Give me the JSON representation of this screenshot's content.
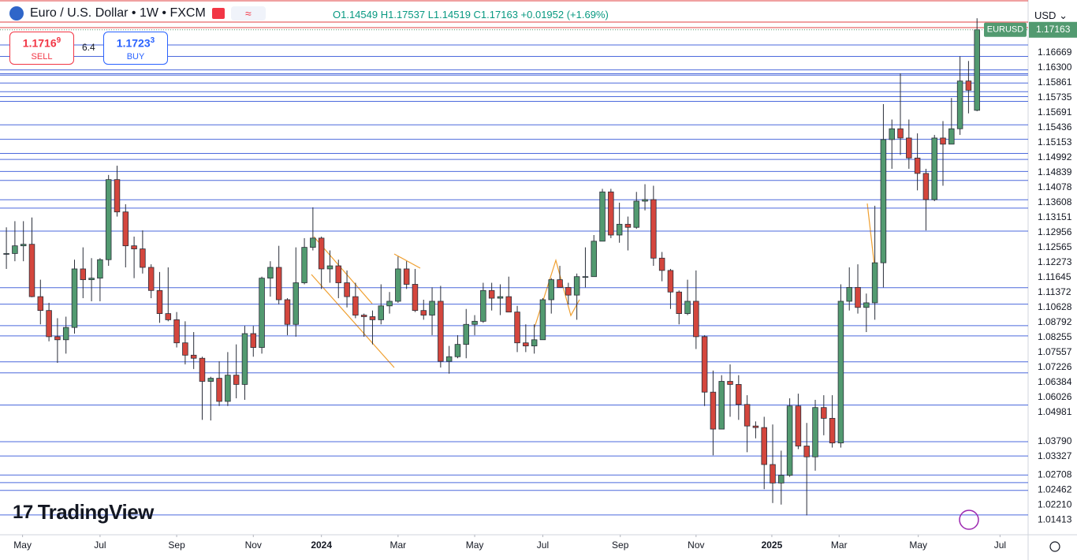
{
  "header": {
    "symbol": "Euro / U.S. Dollar • 1W • FXCM",
    "ohlc": "O1.14549 H1.17537 L1.14519 C1.17163 +0.01952 (+1.69%)"
  },
  "trade": {
    "sell_price": "1.1716",
    "sell_pip": "9",
    "sell_label": "SELL",
    "spread": "6.4",
    "buy_price": "1.1723",
    "buy_pip": "3",
    "buy_label": "BUY"
  },
  "currency": "USD",
  "logo": "TradingView",
  "chart_data": {
    "type": "candlestick",
    "symbol_tag": "EURUSD",
    "up_color": "#529a70",
    "down_color": "#d4463d",
    "level_color": "#2c4fd6",
    "ylim": [
      1.0077,
      1.1813
    ],
    "xlim": [
      -0.75,
      120.0
    ],
    "xticks": [
      {
        "value": 1.9,
        "label": "May"
      },
      {
        "value": 11.0,
        "label": "Jul"
      },
      {
        "value": 20.0,
        "label": "Sep"
      },
      {
        "value": 29.0,
        "label": "Nov"
      },
      {
        "value": 37.0,
        "label": "2024"
      },
      {
        "value": 46.0,
        "label": "Mar"
      },
      {
        "value": 55.0,
        "label": "May"
      },
      {
        "value": 63.0,
        "label": "Jul"
      },
      {
        "value": 72.1,
        "label": "Sep"
      },
      {
        "value": 81.0,
        "label": "Nov"
      },
      {
        "value": 89.9,
        "label": "2025"
      },
      {
        "value": 97.8,
        "label": "Mar"
      },
      {
        "value": 107.1,
        "label": "May"
      },
      {
        "value": 116.7,
        "label": "Jul"
      }
    ],
    "levels": [
      1.16669,
      {
        "value": 1.163,
        "label": "1.16300"
      },
      1.15861,
      1.15735,
      1.15691,
      1.15436,
      1.15153,
      1.14992,
      1.14839,
      1.14078,
      1.13608,
      1.13151,
      1.12956,
      1.12565,
      1.12273,
      1.11645,
      1.11372,
      1.10628,
      1.08792,
      1.08255,
      1.07557,
      1.07226,
      1.06384,
      1.06026,
      1.04981,
      {
        "value": 1.0379,
        "label": "1.03790"
      },
      1.03327,
      1.02708,
      1.02462,
      {
        "value": 1.0221,
        "label": "1.02210"
      },
      1.01413
    ],
    "open": [
      1.099,
      1.099,
      1.1015,
      1.102,
      1.085,
      1.0805,
      1.072,
      1.071,
      1.075,
      1.094,
      1.0905,
      1.091,
      1.097,
      1.123,
      1.1125,
      1.1015,
      1.1005,
      1.0945,
      1.087,
      1.0795,
      1.0775,
      1.07,
      1.066,
      1.065,
      1.0575,
      1.0585,
      1.051,
      1.0595,
      1.0565,
      1.073,
      1.0685,
      1.091,
      1.0945,
      1.084,
      1.076,
      1.0895,
      1.101,
      1.104,
      1.094,
      1.095,
      1.0895,
      1.085,
      1.079,
      1.0785,
      1.0775,
      1.082,
      1.0835,
      1.094,
      1.089,
      1.0805,
      1.079,
      1.0835,
      1.064,
      1.0655,
      1.0695,
      1.076,
      1.077,
      1.087,
      1.0845,
      1.085,
      1.08,
      1.07,
      1.069,
      1.071,
      1.084,
      1.0905,
      1.088,
      1.0855,
      1.0915,
      1.0915,
      1.103,
      1.119,
      1.105,
      1.1085,
      1.1075,
      1.116,
      1.1165,
      1.0975,
      1.0935,
      1.0865,
      1.0795,
      1.0835,
      1.072,
      1.054,
      1.042,
      1.0575,
      1.0565,
      1.05,
      1.043,
      1.0425,
      1.0305,
      1.0245,
      1.027,
      1.0495,
      1.0365,
      1.033,
      1.049,
      1.0455,
      1.0375,
      1.0835,
      1.088,
      1.0815,
      1.083,
      1.096,
      1.136,
      1.1395,
      1.1365,
      1.13,
      1.125,
      1.1165,
      1.1365,
      1.1345,
      1.1395,
      1.155,
      1.14549
    ],
    "high": [
      1.1075,
      1.1095,
      1.1095,
      1.1107,
      1.0905,
      1.083,
      1.078,
      1.0785,
      1.097,
      1.101,
      1.0975,
      1.0975,
      1.1245,
      1.1275,
      1.115,
      1.1045,
      1.1065,
      1.0955,
      1.093,
      1.0945,
      1.08,
      1.077,
      1.0735,
      1.0655,
      1.059,
      1.064,
      1.067,
      1.0695,
      1.0755,
      1.0755,
      1.0915,
      1.0965,
      1.1015,
      1.0845,
      1.101,
      1.104,
      1.114,
      1.1045,
      1.1,
      1.097,
      1.0935,
      1.0895,
      1.0795,
      1.0805,
      1.089,
      1.0865,
      1.098,
      1.0965,
      1.094,
      1.084,
      1.088,
      1.0885,
      1.069,
      1.0725,
      1.081,
      1.079,
      1.0895,
      1.0895,
      1.089,
      1.0915,
      1.082,
      1.076,
      1.076,
      1.0845,
      1.091,
      1.095,
      1.0895,
      1.0925,
      1.101,
      1.105,
      1.12,
      1.12,
      1.1155,
      1.111,
      1.119,
      1.1215,
      1.121,
      1.0995,
      1.094,
      1.087,
      1.0905,
      1.0935,
      1.0725,
      1.061,
      1.0595,
      1.063,
      1.0595,
      1.053,
      1.0445,
      1.046,
      1.0435,
      1.035,
      1.052,
      1.0535,
      1.044,
      1.0515,
      1.053,
      1.053,
      1.089,
      1.0945,
      1.0955,
      1.086,
      1.1145,
      1.1475,
      1.1425,
      1.1575,
      1.1425,
      1.138,
      1.1265,
      1.1375,
      1.142,
      1.1495,
      1.163,
      1.1615,
      1.17537
    ],
    "low": [
      1.094,
      1.0965,
      1.0965,
      1.0848,
      1.076,
      1.0705,
      1.0635,
      1.0665,
      1.073,
      1.0845,
      1.0835,
      1.0835,
      1.095,
      1.111,
      1.0945,
      1.091,
      1.0925,
      1.0845,
      1.0765,
      1.077,
      1.0685,
      1.063,
      1.0615,
      1.045,
      1.0448,
      1.0495,
      1.0495,
      1.052,
      1.0515,
      1.0655,
      1.0665,
      1.085,
      1.0825,
      1.0725,
      1.072,
      1.089,
      1.1,
      1.0875,
      1.0895,
      1.0845,
      1.0815,
      1.078,
      1.072,
      1.0695,
      1.076,
      1.0795,
      1.083,
      1.0875,
      1.08,
      1.0775,
      1.0725,
      1.062,
      1.06,
      1.065,
      1.065,
      1.0725,
      1.0765,
      1.0805,
      1.079,
      1.08,
      1.067,
      1.067,
      1.0665,
      1.071,
      1.0795,
      1.088,
      1.0825,
      1.0775,
      1.088,
      1.092,
      1.103,
      1.104,
      1.1025,
      1.1,
      1.107,
      1.113,
      1.095,
      1.09,
      1.081,
      1.076,
      1.079,
      1.068,
      1.0495,
      1.0335,
      1.0425,
      1.046,
      1.045,
      1.0345,
      1.039,
      1.0225,
      1.018,
      1.0175,
      1.0265,
      1.0355,
      1.014,
      1.0285,
      1.04,
      1.036,
      1.036,
      1.0805,
      1.0795,
      1.0735,
      1.0775,
      1.088,
      1.1265,
      1.131,
      1.1265,
      1.1195,
      1.1065,
      1.116,
      1.121,
      1.1355,
      1.1375,
      1.1445,
      1.14519
    ],
    "close": [
      1.099,
      1.1015,
      1.102,
      1.085,
      1.0805,
      1.072,
      1.071,
      1.075,
      1.094,
      1.0905,
      1.091,
      1.097,
      1.123,
      1.1125,
      1.1015,
      1.1005,
      1.0945,
      1.087,
      1.0795,
      1.0775,
      1.07,
      1.066,
      1.065,
      1.0575,
      1.0585,
      1.051,
      1.0595,
      1.0565,
      1.073,
      1.0685,
      1.091,
      1.0945,
      1.084,
      1.076,
      1.0895,
      1.101,
      1.104,
      1.094,
      1.095,
      1.0895,
      1.085,
      1.079,
      1.0785,
      1.0775,
      1.082,
      1.0835,
      1.094,
      1.089,
      1.0805,
      1.079,
      1.0835,
      1.064,
      1.0655,
      1.0695,
      1.076,
      1.077,
      1.087,
      1.0845,
      1.085,
      1.08,
      1.07,
      1.069,
      1.071,
      1.084,
      1.0905,
      1.088,
      1.0855,
      1.0915,
      1.0915,
      1.103,
      1.119,
      1.105,
      1.1085,
      1.1075,
      1.116,
      1.1165,
      1.0975,
      1.0935,
      1.0865,
      1.0795,
      1.0835,
      1.072,
      1.054,
      1.042,
      1.0575,
      1.0565,
      1.05,
      1.043,
      1.0425,
      1.0305,
      1.0245,
      1.027,
      1.0495,
      1.0365,
      1.033,
      1.049,
      1.0455,
      1.0375,
      1.0835,
      1.088,
      1.0815,
      1.083,
      1.096,
      1.136,
      1.1395,
      1.1365,
      1.13,
      1.125,
      1.1165,
      1.1365,
      1.1345,
      1.1395,
      1.155,
      1.152,
      1.17163
    ]
  }
}
